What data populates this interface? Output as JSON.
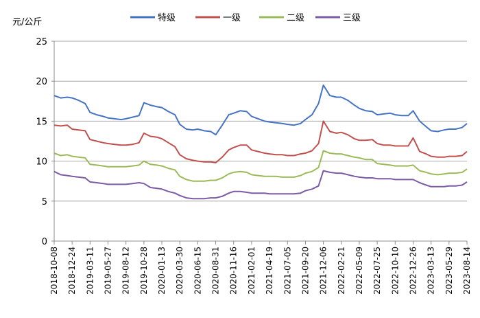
{
  "chart_data": {
    "type": "line",
    "unit_label": "元/公斤",
    "ylim": [
      0,
      25
    ],
    "y_ticks": [
      0,
      5,
      10,
      15,
      20,
      25
    ],
    "grid": "horizontal",
    "legend_position": "top",
    "x_tick_labels": [
      "2018-10-08",
      "2018-12-24",
      "2019-03-11",
      "2019-05-27",
      "2019-08-12",
      "2019-10-28",
      "2020-01-13",
      "2020-03-30",
      "2020-06-15",
      "2020-08-31",
      "2020-11-16",
      "2021-02-01",
      "2021-04-19",
      "2021-07-05",
      "2021-09-20",
      "2021-12-06",
      "2022-02-21",
      "2022-05-09",
      "2022-07-25",
      "2022-10-10",
      "2022-12-26",
      "2023-03-13",
      "2023-05-29",
      "2023-08-14"
    ],
    "x": [
      "2018-10-08",
      "2018-11-05",
      "2018-12-03",
      "2018-12-24",
      "2019-01-21",
      "2019-02-18",
      "2019-03-11",
      "2019-04-08",
      "2019-05-06",
      "2019-05-27",
      "2019-06-24",
      "2019-07-22",
      "2019-08-12",
      "2019-09-09",
      "2019-10-07",
      "2019-10-28",
      "2019-11-25",
      "2019-12-23",
      "2020-01-13",
      "2020-02-10",
      "2020-03-09",
      "2020-03-30",
      "2020-04-27",
      "2020-05-25",
      "2020-06-15",
      "2020-07-13",
      "2020-08-10",
      "2020-08-31",
      "2020-09-28",
      "2020-10-26",
      "2020-11-16",
      "2020-12-14",
      "2021-01-11",
      "2021-02-01",
      "2021-03-01",
      "2021-03-29",
      "2021-04-19",
      "2021-05-17",
      "2021-06-14",
      "2021-07-05",
      "2021-08-02",
      "2021-08-30",
      "2021-09-20",
      "2021-10-18",
      "2021-11-15",
      "2021-12-06",
      "2022-01-03",
      "2022-01-31",
      "2022-02-21",
      "2022-03-21",
      "2022-04-18",
      "2022-05-09",
      "2022-06-06",
      "2022-07-04",
      "2022-07-25",
      "2022-08-22",
      "2022-09-19",
      "2022-10-10",
      "2022-11-07",
      "2022-12-05",
      "2022-12-26",
      "2023-01-23",
      "2023-02-20",
      "2023-03-13",
      "2023-04-10",
      "2023-05-08",
      "2023-05-29",
      "2023-06-26",
      "2023-07-24",
      "2023-08-14"
    ],
    "series": [
      {
        "name": "特级",
        "color": "#4472C4",
        "values": [
          18.2,
          17.9,
          18.0,
          17.9,
          17.6,
          17.2,
          16.1,
          15.8,
          15.6,
          15.4,
          15.3,
          15.2,
          15.3,
          15.5,
          15.7,
          17.3,
          17.0,
          16.8,
          16.7,
          16.2,
          15.8,
          14.6,
          14.0,
          13.9,
          14.0,
          13.8,
          13.7,
          13.3,
          14.5,
          15.8,
          16.0,
          16.3,
          16.2,
          15.6,
          15.3,
          15.0,
          14.9,
          14.8,
          14.7,
          14.6,
          14.5,
          14.7,
          15.2,
          15.8,
          17.2,
          19.5,
          18.2,
          18.0,
          18.0,
          17.6,
          17.0,
          16.6,
          16.3,
          16.2,
          15.8,
          15.9,
          16.0,
          15.8,
          15.7,
          15.7,
          16.3,
          15.0,
          14.3,
          13.8,
          13.7,
          13.9,
          14.0,
          14.0,
          14.2,
          14.7
        ]
      },
      {
        "name": "一级",
        "color": "#C0504D",
        "values": [
          14.5,
          14.4,
          14.5,
          14.0,
          13.9,
          13.8,
          12.7,
          12.5,
          12.3,
          12.2,
          12.1,
          12.0,
          12.0,
          12.1,
          12.3,
          13.5,
          13.1,
          13.0,
          12.8,
          12.3,
          11.8,
          10.8,
          10.3,
          10.1,
          10.0,
          9.9,
          9.9,
          9.8,
          10.5,
          11.4,
          11.7,
          12.0,
          12.0,
          11.4,
          11.2,
          11.0,
          10.9,
          10.8,
          10.8,
          10.7,
          10.7,
          10.9,
          11.0,
          11.3,
          12.2,
          15.0,
          13.7,
          13.5,
          13.6,
          13.3,
          12.8,
          12.6,
          12.6,
          12.7,
          12.2,
          12.0,
          12.0,
          11.9,
          11.9,
          11.9,
          12.9,
          11.2,
          10.9,
          10.6,
          10.5,
          10.5,
          10.6,
          10.6,
          10.7,
          11.2
        ]
      },
      {
        "name": "二级",
        "color": "#9BBB59",
        "values": [
          11.0,
          10.7,
          10.8,
          10.6,
          10.5,
          10.4,
          9.6,
          9.5,
          9.4,
          9.3,
          9.3,
          9.3,
          9.3,
          9.4,
          9.5,
          10.0,
          9.6,
          9.5,
          9.4,
          9.1,
          8.9,
          8.1,
          7.7,
          7.5,
          7.5,
          7.5,
          7.6,
          7.6,
          7.9,
          8.4,
          8.6,
          8.7,
          8.6,
          8.3,
          8.2,
          8.1,
          8.1,
          8.1,
          8.0,
          8.0,
          8.0,
          8.2,
          8.5,
          8.7,
          9.2,
          11.3,
          11.0,
          10.9,
          10.9,
          10.7,
          10.5,
          10.4,
          10.2,
          10.2,
          9.7,
          9.6,
          9.5,
          9.4,
          9.4,
          9.4,
          9.5,
          8.8,
          8.6,
          8.4,
          8.3,
          8.4,
          8.5,
          8.5,
          8.6,
          9.0
        ]
      },
      {
        "name": "三级",
        "color": "#7B5AA6",
        "values": [
          8.7,
          8.3,
          8.2,
          8.1,
          8.0,
          7.9,
          7.4,
          7.3,
          7.2,
          7.1,
          7.1,
          7.1,
          7.1,
          7.2,
          7.3,
          7.2,
          6.7,
          6.6,
          6.5,
          6.2,
          6.0,
          5.7,
          5.4,
          5.3,
          5.3,
          5.3,
          5.4,
          5.4,
          5.6,
          6.0,
          6.2,
          6.2,
          6.1,
          6.0,
          6.0,
          6.0,
          5.9,
          5.9,
          5.9,
          5.9,
          5.9,
          6.0,
          6.3,
          6.5,
          6.9,
          8.8,
          8.6,
          8.5,
          8.5,
          8.3,
          8.1,
          8.0,
          7.9,
          7.9,
          7.8,
          7.8,
          7.8,
          7.7,
          7.7,
          7.7,
          7.7,
          7.3,
          7.0,
          6.8,
          6.8,
          6.8,
          6.9,
          6.9,
          7.0,
          7.4
        ]
      }
    ]
  }
}
